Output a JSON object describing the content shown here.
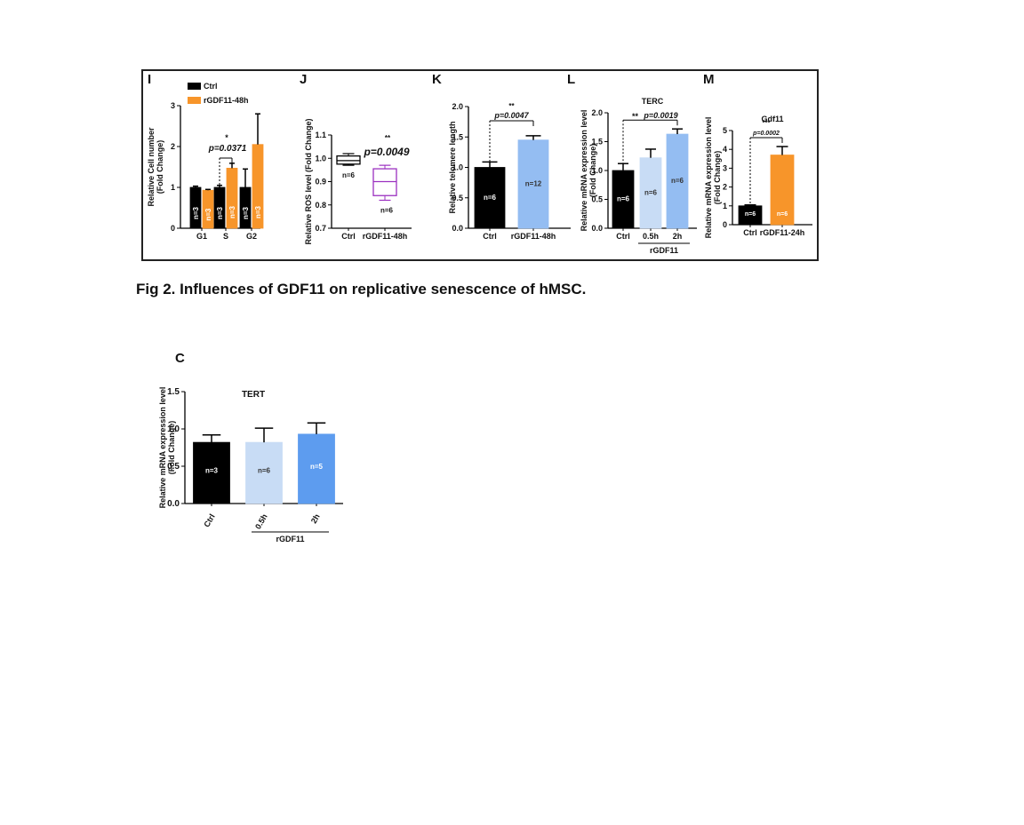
{
  "caption": "Fig 2. Influences of GDF11 on replicative senescence of hMSC.",
  "colors": {
    "black": "#000000",
    "orange": "#f7952a",
    "light_blue": "#c8dcf5",
    "mid_blue": "#94bdf2",
    "blue": "#5d9cef",
    "purple": "#9b30c0"
  },
  "chart_data": [
    {
      "panel": "I",
      "type": "bar",
      "ylabel": "Relative Cell number\n(Fold Change)",
      "ylim": [
        0,
        3
      ],
      "yticks": [
        "0",
        "1",
        "2",
        "3"
      ],
      "categories": [
        "G1",
        "S",
        "G2"
      ],
      "legend": [
        "Ctrl",
        "rGDF11-48h"
      ],
      "series": [
        {
          "name": "Ctrl",
          "color": "#000000",
          "values": [
            1.0,
            1.0,
            1.0
          ],
          "errors": [
            0.03,
            0.05,
            0.45
          ],
          "labels": [
            "n=3",
            "n=3",
            "n=3"
          ]
        },
        {
          "name": "rGDF11-48h",
          "color": "#f7952a",
          "values": [
            0.93,
            1.47,
            2.05
          ],
          "errors": [
            0.02,
            0.12,
            0.75
          ],
          "labels": [
            "n=3",
            "n=3",
            "n=3"
          ]
        }
      ],
      "annotation": {
        "p": "p=0.0371",
        "stars": "*"
      }
    },
    {
      "panel": "J",
      "type": "box",
      "ylabel": "Relative ROS level (Fold Change)",
      "ylim": [
        0.7,
        1.1
      ],
      "yticks": [
        "0.7",
        "0.8",
        "0.9",
        "1.0",
        "1.1"
      ],
      "categories": [
        "Ctrl",
        "rGDF11-48h"
      ],
      "boxes": [
        {
          "min": 0.97,
          "q1": 0.975,
          "median": 0.99,
          "q3": 1.01,
          "max": 1.02,
          "color": "#000000",
          "label": "n=6"
        },
        {
          "min": 0.82,
          "q1": 0.84,
          "median": 0.9,
          "q3": 0.955,
          "max": 0.97,
          "color": "#9b30c0",
          "label": "n=6"
        }
      ],
      "annotation": {
        "p": "p=0.0049",
        "stars": "**"
      }
    },
    {
      "panel": "K",
      "type": "bar",
      "ylabel": "Relative telomere length",
      "ylim": [
        0,
        2.0
      ],
      "yticks": [
        "0.0",
        "0.5",
        "1.0",
        "1.5",
        "2.0"
      ],
      "categories": [
        "Ctrl",
        "rGDF11-48h"
      ],
      "values": [
        1.0,
        1.45
      ],
      "errors": [
        0.09,
        0.07
      ],
      "colors": [
        "#000000",
        "#94bdf2"
      ],
      "labels": [
        "n=6",
        "n=12"
      ],
      "annotation": {
        "p": "p=0.0047",
        "stars": "**"
      }
    },
    {
      "panel": "L",
      "title": "TERC",
      "type": "bar",
      "ylabel": "Relative mRNA expression level\n(Fold Change)",
      "ylim": [
        0,
        2.0
      ],
      "yticks": [
        "0.0",
        "0.5",
        "1.0",
        "1.5",
        "2.0"
      ],
      "categories": [
        "Ctrl",
        "0.5h",
        "2h"
      ],
      "group_label": "rGDF11",
      "values": [
        1.0,
        1.22,
        1.63
      ],
      "errors": [
        0.12,
        0.15,
        0.09
      ],
      "colors": [
        "#000000",
        "#c8dcf5",
        "#94bdf2"
      ],
      "labels": [
        "n=6",
        "n=6",
        "n=6"
      ],
      "annotation": {
        "p": "p=0.0019",
        "stars": "**"
      }
    },
    {
      "panel": "M",
      "title": "Gdf11",
      "type": "bar",
      "ylabel": "Relative mRNA expression level\n(Fold Change)",
      "ylim": [
        0,
        5
      ],
      "yticks": [
        "0",
        "1",
        "2",
        "3",
        "4",
        "5"
      ],
      "categories": [
        "Ctrl",
        "rGDF11-24h"
      ],
      "values": [
        1.0,
        3.7
      ],
      "errors": [
        0.05,
        0.45
      ],
      "colors": [
        "#000000",
        "#f7952a"
      ],
      "labels": [
        "n=6",
        "n=6"
      ],
      "annotation": {
        "p": "p=0.0002",
        "stars": "***"
      }
    },
    {
      "panel": "C",
      "title": "TERT",
      "type": "bar",
      "ylabel": "Relative mRNA expression level\n(Fold Change)",
      "ylim": [
        0,
        1.5
      ],
      "yticks": [
        "0.0",
        "0.5",
        "1.0",
        "1.5"
      ],
      "categories": [
        "Ctrl",
        "0.5h",
        "2h"
      ],
      "group_label": "rGDF11",
      "values": [
        0.82,
        0.82,
        0.93
      ],
      "errors": [
        0.1,
        0.19,
        0.15
      ],
      "colors": [
        "#000000",
        "#c8dcf5",
        "#5d9cef"
      ],
      "labels": [
        "n=3",
        "n=6",
        "n=5"
      ]
    }
  ]
}
